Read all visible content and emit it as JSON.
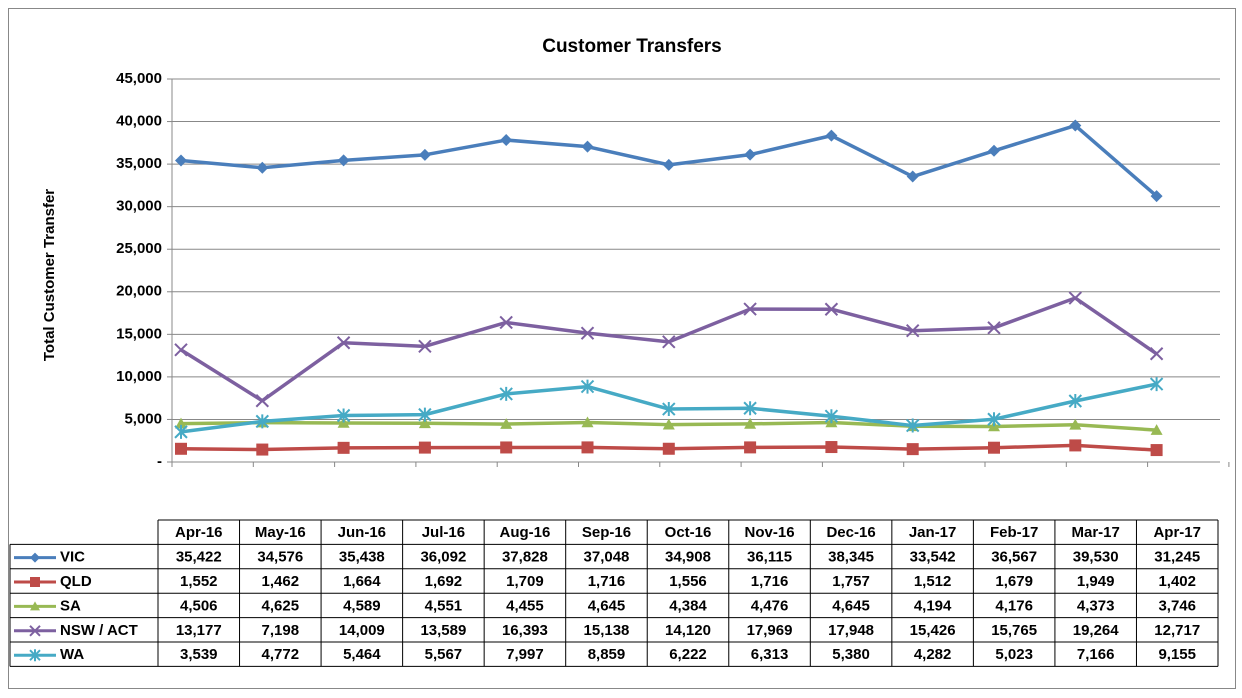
{
  "chart_data": {
    "type": "line",
    "title": "Customer Transfers",
    "y_label": "Total Customer Transfer",
    "categories": [
      "Apr-16",
      "May-16",
      "Jun-16",
      "Jul-16",
      "Aug-16",
      "Sep-16",
      "Oct-16",
      "Nov-16",
      "Dec-16",
      "Jan-17",
      "Feb-17",
      "Mar-17",
      "Apr-17"
    ],
    "ylim": [
      0,
      45000
    ],
    "yticks": [
      {
        "value": 0,
        "label": "-"
      },
      {
        "value": 5000,
        "label": "5,000"
      },
      {
        "value": 10000,
        "label": "10,000"
      },
      {
        "value": 15000,
        "label": "15,000"
      },
      {
        "value": 20000,
        "label": "20,000"
      },
      {
        "value": 25000,
        "label": "25,000"
      },
      {
        "value": 30000,
        "label": "30,000"
      },
      {
        "value": 35000,
        "label": "35,000"
      },
      {
        "value": 40000,
        "label": "40,000"
      },
      {
        "value": 45000,
        "label": "45,000"
      }
    ],
    "grid": true,
    "series": [
      {
        "name": "VIC",
        "color": "#4a7ebb",
        "marker": "diamond",
        "values": [
          35422,
          34576,
          35438,
          36092,
          37828,
          37048,
          34908,
          36115,
          38345,
          33542,
          36567,
          39530,
          31245
        ],
        "value_labels": [
          "35,422",
          "34,576",
          "35,438",
          "36,092",
          "37,828",
          "37,048",
          "34,908",
          "36,115",
          "38,345",
          "33,542",
          "36,567",
          "39,530",
          "31,245"
        ]
      },
      {
        "name": "QLD",
        "color": "#be4b48",
        "marker": "square",
        "values": [
          1552,
          1462,
          1664,
          1692,
          1709,
          1716,
          1556,
          1716,
          1757,
          1512,
          1679,
          1949,
          1402
        ],
        "value_labels": [
          "1,552",
          "1,462",
          "1,664",
          "1,692",
          "1,709",
          "1,716",
          "1,556",
          "1,716",
          "1,757",
          "1,512",
          "1,679",
          "1,949",
          "1,402"
        ]
      },
      {
        "name": "SA",
        "color": "#98b954",
        "marker": "triangle",
        "values": [
          4506,
          4625,
          4589,
          4551,
          4455,
          4645,
          4384,
          4476,
          4645,
          4194,
          4176,
          4373,
          3746
        ],
        "value_labels": [
          "4,506",
          "4,625",
          "4,589",
          "4,551",
          "4,455",
          "4,645",
          "4,384",
          "4,476",
          "4,645",
          "4,194",
          "4,176",
          "4,373",
          "3,746"
        ]
      },
      {
        "name": "NSW / ACT",
        "color": "#7d60a0",
        "marker": "x",
        "values": [
          13177,
          7198,
          14009,
          13589,
          16393,
          15138,
          14120,
          17969,
          17948,
          15426,
          15765,
          19264,
          12717
        ],
        "value_labels": [
          "13,177",
          "7,198",
          "14,009",
          "13,589",
          "16,393",
          "15,138",
          "14,120",
          "17,969",
          "17,948",
          "15,426",
          "15,765",
          "19,264",
          "12,717"
        ]
      },
      {
        "name": "WA",
        "color": "#46aac5",
        "marker": "star",
        "values": [
          3539,
          4772,
          5464,
          5567,
          7997,
          8859,
          6222,
          6313,
          5380,
          4282,
          5023,
          7166,
          9155
        ],
        "value_labels": [
          "3,539",
          "4,772",
          "5,464",
          "5,567",
          "7,997",
          "8,859",
          "6,222",
          "6,313",
          "5,380",
          "4,282",
          "5,023",
          "7,166",
          "9,155"
        ]
      }
    ]
  }
}
